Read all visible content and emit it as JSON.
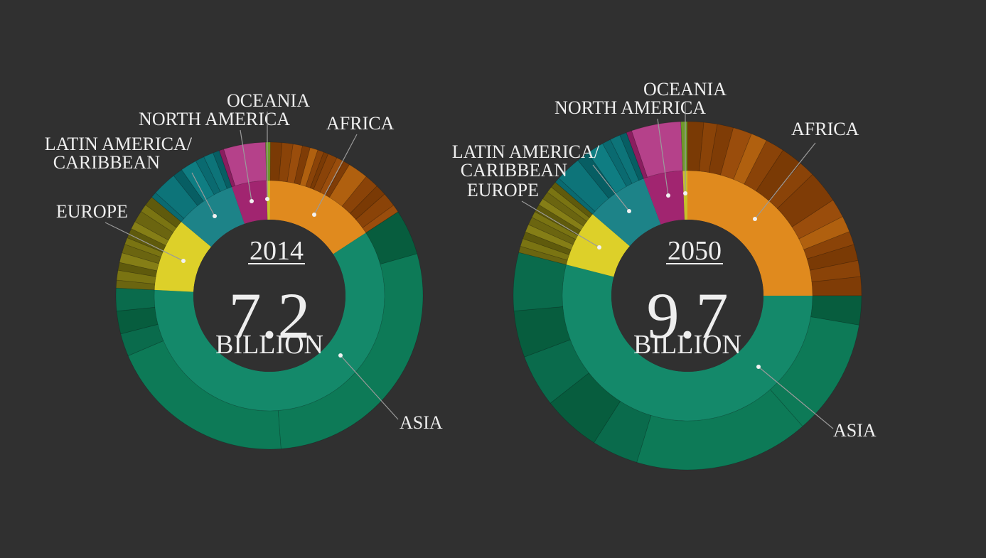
{
  "chart_data": [
    {
      "type": "sunburst",
      "year": "2014",
      "total_value": "7.2",
      "total_unit": "BILLION",
      "total_billions": 7.2,
      "regions": [
        {
          "name": "AFRICA",
          "label_lines": [
            "AFRICA"
          ],
          "share": 0.158,
          "color": "#e08a1e",
          "subs": [
            0.08,
            0.07,
            0.06,
            0.05,
            0.05,
            0.04,
            0.03,
            0.06,
            0.05,
            0.04,
            0.13,
            0.09,
            0.07,
            0.09,
            0.05
          ],
          "sub_colors": [
            "#7a3a05",
            "#8a4308",
            "#9a4d0c",
            "#7f3c06",
            "#b0600f",
            "#8a4308"
          ]
        },
        {
          "name": "ASIA",
          "label_lines": [
            "ASIA"
          ],
          "share": 0.6,
          "color": "#14896a",
          "subs": [
            0.08,
            0.47,
            0.33,
            0.04,
            0.04,
            0.04
          ],
          "sub_colors": [
            "#075d3e",
            "#0d7a57",
            "#0d7a57",
            "#0a6b4c",
            "#075d3e",
            "#0a6b4c"
          ]
        },
        {
          "name": "EUROPE",
          "label_lines": [
            "EUROPE"
          ],
          "share": 0.103,
          "color": "#ddd029",
          "subs": [
            0.08,
            0.1,
            0.08,
            0.1,
            0.09,
            0.07,
            0.1,
            0.08,
            0.12,
            0.08,
            0.1
          ],
          "sub_colors": [
            "#6b6510",
            "#7a7412",
            "#5f5a0c",
            "#857e16"
          ]
        },
        {
          "name": "LATIN AMERICA/ CARIBBEAN",
          "label_lines": [
            "LATIN AMERICA/",
            "CARIBBEAN"
          ],
          "share": 0.086,
          "color": "#1d8388",
          "subs": [
            0.07,
            0.3,
            0.12,
            0.2,
            0.11,
            0.12,
            0.08
          ],
          "sub_colors": [
            "#0a6a70",
            "#0d7479",
            "#075e63",
            "#0f7d82"
          ]
        },
        {
          "name": "NORTH AMERICA",
          "label_lines": [
            "NORTH AMERICA"
          ],
          "share": 0.049,
          "color": "#a12570",
          "subs": [
            0.1,
            0.9
          ],
          "sub_colors": [
            "#8a1d5f",
            "#b5418a"
          ]
        },
        {
          "name": "OCEANIA",
          "label_lines": [
            "OCEANIA"
          ],
          "share": 0.005,
          "color": "#c8c02a",
          "subs": [
            1
          ],
          "sub_colors": [
            "#6f9a2a"
          ]
        }
      ]
    },
    {
      "type": "sunburst",
      "year": "2050",
      "total_value": "9.7",
      "total_unit": "BILLION",
      "total_billions": 9.7,
      "regions": [
        {
          "name": "AFRICA",
          "label_lines": [
            "AFRICA"
          ],
          "share": 0.25,
          "color": "#e08a1e",
          "subs": [
            0.06,
            0.05,
            0.06,
            0.07,
            0.06,
            0.07,
            0.08,
            0.06,
            0.12,
            0.07,
            0.06,
            0.05,
            0.06,
            0.06,
            0.07
          ],
          "sub_colors": [
            "#7a3a05",
            "#8a4308",
            "#7f3c06",
            "#9a4d0c",
            "#b0600f",
            "#8a4308"
          ]
        },
        {
          "name": "ASIA",
          "label_lines": [
            "ASIA"
          ],
          "share": 0.54,
          "color": "#14896a",
          "subs": [
            0.05,
            0.2,
            0.3,
            0.08,
            0.1,
            0.09,
            0.08,
            0.1
          ],
          "sub_colors": [
            "#075d3e",
            "#0d7a57",
            "#0d7a57",
            "#0a6b4c",
            "#075d3e",
            "#0a6b4c",
            "#075d3e",
            "#0a6b4c"
          ]
        },
        {
          "name": "EUROPE",
          "label_lines": [
            "EUROPE"
          ],
          "share": 0.073,
          "color": "#ddd029",
          "subs": [
            0.08,
            0.1,
            0.09,
            0.1,
            0.1,
            0.08,
            0.1,
            0.09,
            0.1,
            0.08,
            0.08
          ],
          "sub_colors": [
            "#6b6510",
            "#7a7412",
            "#5f5a0c",
            "#857e16"
          ]
        },
        {
          "name": "LATIN AMERICA/ CARIBBEAN",
          "label_lines": [
            "LATIN AMERICA/",
            "CARIBBEAN"
          ],
          "share": 0.08,
          "color": "#1d8388",
          "subs": [
            0.06,
            0.3,
            0.14,
            0.2,
            0.1,
            0.12,
            0.08
          ],
          "sub_colors": [
            "#0a6a70",
            "#0d7479",
            "#075e63",
            "#0f7d82"
          ]
        },
        {
          "name": "NORTH AMERICA",
          "label_lines": [
            "NORTH AMERICA"
          ],
          "share": 0.051,
          "color": "#a12570",
          "subs": [
            0.1,
            0.9
          ],
          "sub_colors": [
            "#8a1d5f",
            "#b5418a"
          ]
        },
        {
          "name": "OCEANIA",
          "label_lines": [
            "OCEANIA"
          ],
          "share": 0.006,
          "color": "#c8c02a",
          "subs": [
            1
          ],
          "sub_colors": [
            "#6f9a2a"
          ]
        }
      ]
    }
  ],
  "colors": {
    "background": "#303030",
    "text": "#eeeeee",
    "leader_line": "#9a9a9a"
  }
}
